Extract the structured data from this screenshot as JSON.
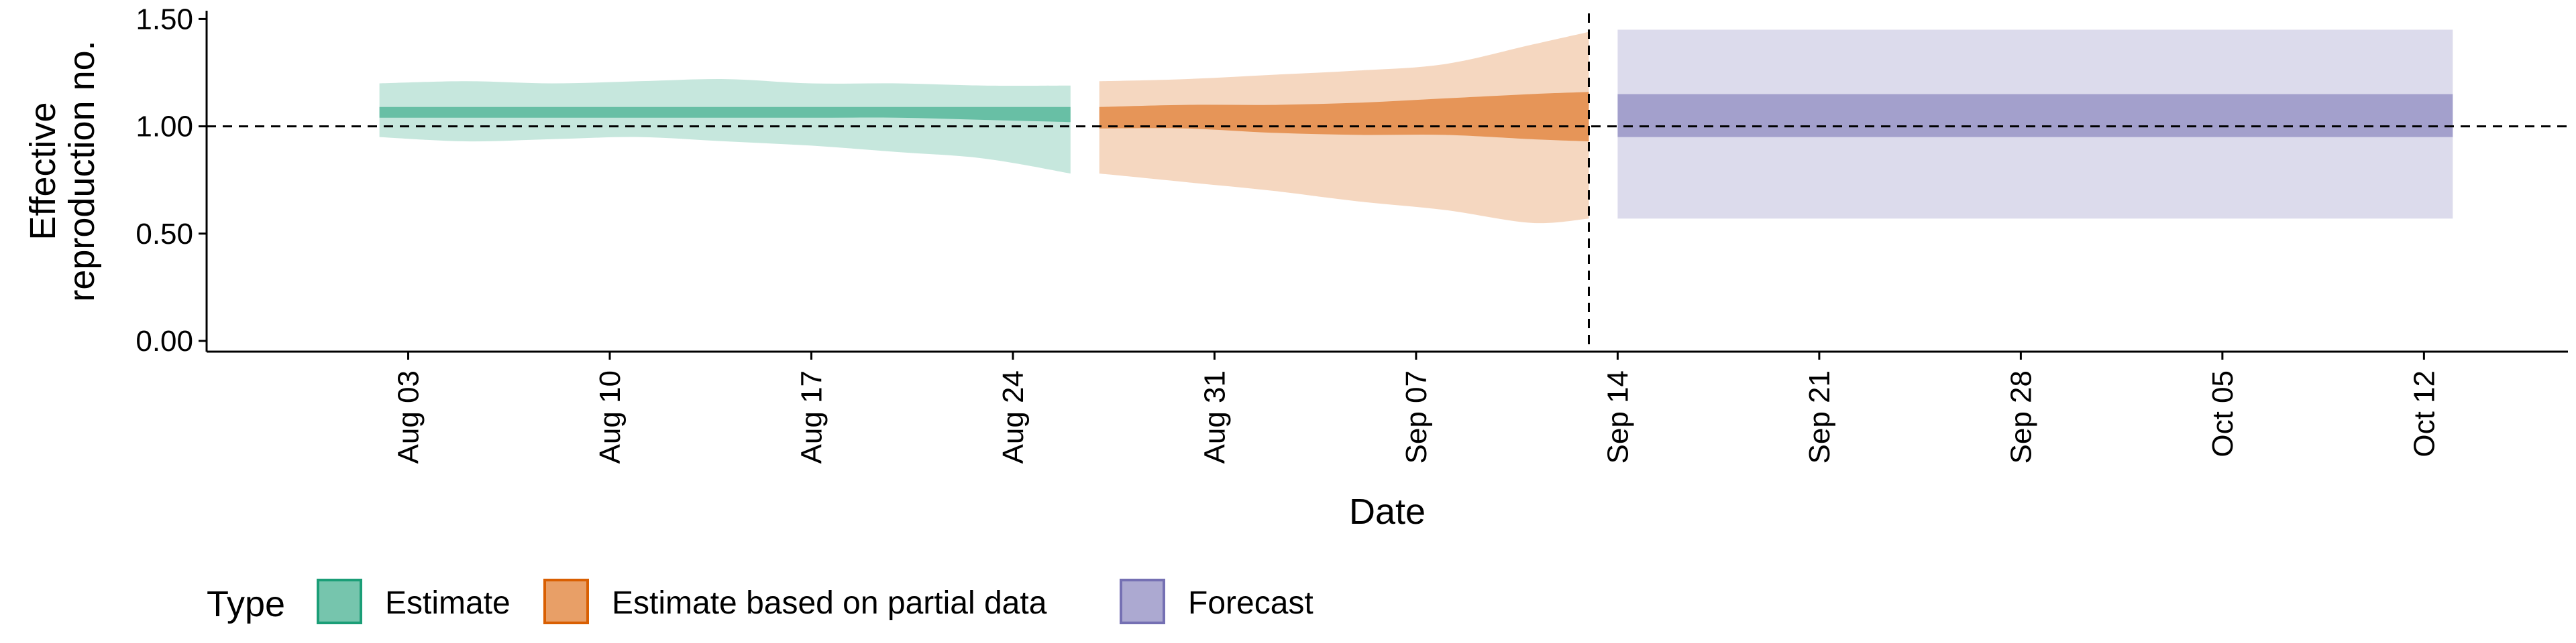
{
  "chart_data": {
    "type": "area",
    "title": "",
    "xlabel": "Date",
    "ylabel_lines": [
      "Effective",
      "reproduction no."
    ],
    "x_ticks": [
      "Aug 03",
      "Aug 10",
      "Aug 17",
      "Aug 24",
      "Aug 31",
      "Sep 07",
      "Sep 14",
      "Sep 21",
      "Sep 28",
      "Oct 05",
      "Oct 12"
    ],
    "x_tick_dates": [
      "2020-08-03",
      "2020-08-10",
      "2020-08-17",
      "2020-08-24",
      "2020-08-31",
      "2020-09-07",
      "2020-09-14",
      "2020-09-21",
      "2020-09-28",
      "2020-10-05",
      "2020-10-12"
    ],
    "xlim": [
      "2020-07-27",
      "2020-10-17"
    ],
    "y_ticks": [
      "0.00",
      "0.50",
      "1.00",
      "1.50"
    ],
    "ylim": [
      -0.05,
      1.52
    ],
    "reference_line_y": 1.0,
    "vertical_line_date": "2020-09-13",
    "grid": false,
    "legend": {
      "title": "Type",
      "placement": "bottom-left",
      "entries": [
        "Estimate",
        "Estimate based on partial data",
        "Forecast"
      ]
    },
    "series": [
      {
        "name": "Estimate",
        "color": "#1b9e77",
        "outer_alpha": 0.25,
        "inner_alpha": 0.55,
        "points": [
          {
            "x": "2020-08-02",
            "lower90": 0.95,
            "lower50": 1.04,
            "upper50": 1.09,
            "upper90": 1.2
          },
          {
            "x": "2020-08-05",
            "lower90": 0.93,
            "lower50": 1.04,
            "upper50": 1.09,
            "upper90": 1.21
          },
          {
            "x": "2020-08-08",
            "lower90": 0.94,
            "lower50": 1.04,
            "upper50": 1.09,
            "upper90": 1.2
          },
          {
            "x": "2020-08-11",
            "lower90": 0.95,
            "lower50": 1.04,
            "upper50": 1.09,
            "upper90": 1.21
          },
          {
            "x": "2020-08-14",
            "lower90": 0.93,
            "lower50": 1.04,
            "upper50": 1.09,
            "upper90": 1.22
          },
          {
            "x": "2020-08-17",
            "lower90": 0.91,
            "lower50": 1.04,
            "upper50": 1.09,
            "upper90": 1.2
          },
          {
            "x": "2020-08-20",
            "lower90": 0.88,
            "lower50": 1.04,
            "upper50": 1.09,
            "upper90": 1.2
          },
          {
            "x": "2020-08-23",
            "lower90": 0.85,
            "lower50": 1.03,
            "upper50": 1.09,
            "upper90": 1.19
          },
          {
            "x": "2020-08-26",
            "lower90": 0.78,
            "lower50": 1.02,
            "upper50": 1.09,
            "upper90": 1.19
          }
        ]
      },
      {
        "name": "Estimate based on partial data",
        "color": "#d95f02",
        "outer_alpha": 0.25,
        "inner_alpha": 0.55,
        "points": [
          {
            "x": "2020-08-27",
            "lower90": 0.78,
            "lower50": 0.99,
            "upper50": 1.09,
            "upper90": 1.21
          },
          {
            "x": "2020-08-30",
            "lower90": 0.74,
            "lower50": 0.99,
            "upper50": 1.1,
            "upper90": 1.22
          },
          {
            "x": "2020-09-02",
            "lower90": 0.7,
            "lower50": 0.97,
            "upper50": 1.1,
            "upper90": 1.24
          },
          {
            "x": "2020-09-05",
            "lower90": 0.65,
            "lower50": 0.96,
            "upper50": 1.11,
            "upper90": 1.26
          },
          {
            "x": "2020-09-08",
            "lower90": 0.61,
            "lower50": 0.96,
            "upper50": 1.13,
            "upper90": 1.29
          },
          {
            "x": "2020-09-11",
            "lower90": 0.55,
            "lower50": 0.94,
            "upper50": 1.15,
            "upper90": 1.38
          },
          {
            "x": "2020-09-13",
            "lower90": 0.57,
            "lower50": 0.93,
            "upper50": 1.16,
            "upper90": 1.44
          }
        ]
      },
      {
        "name": "Forecast",
        "color": "#7570b3",
        "outer_alpha": 0.25,
        "inner_alpha": 0.55,
        "points": [
          {
            "x": "2020-09-14",
            "lower90": 0.57,
            "lower50": 0.95,
            "upper50": 1.15,
            "upper90": 1.45
          },
          {
            "x": "2020-10-13",
            "lower90": 0.57,
            "lower50": 0.95,
            "upper50": 1.15,
            "upper90": 1.45
          }
        ]
      }
    ]
  }
}
